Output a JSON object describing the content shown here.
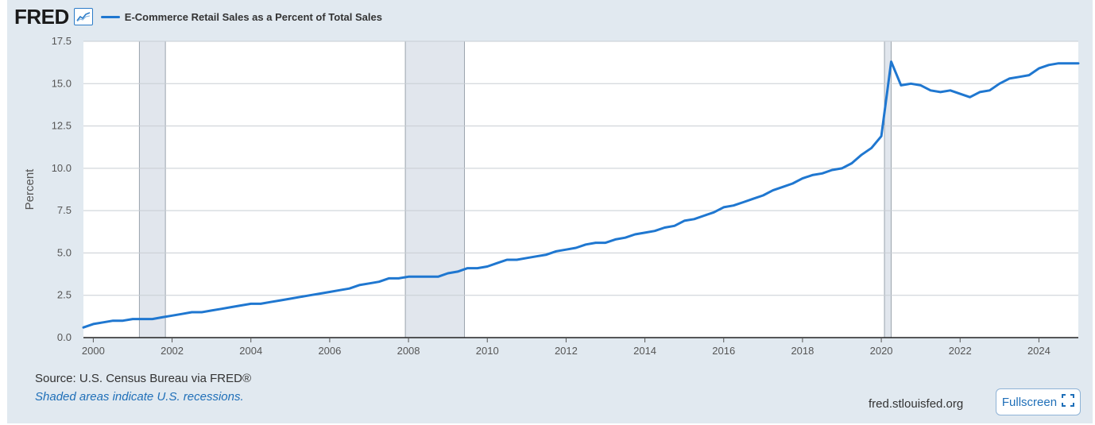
{
  "header": {
    "logo": "FRED",
    "legend_label": "E-Commerce Retail Sales as a Percent of Total Sales",
    "icon": "line-chart-icon"
  },
  "footer": {
    "source": "Source: U.S. Census Bureau via FRED®",
    "note": "Shaded areas indicate U.S. recessions.",
    "site": "fred.stlouisfed.org",
    "fullscreen_label": "Fullscreen",
    "fullscreen_icon": "expand-icon"
  },
  "colors": {
    "line": "#1f77d0",
    "recession": "#e1e6ed",
    "panel": "#e1e9f0"
  },
  "chart_data": {
    "type": "line",
    "ylabel": "Percent",
    "ylim": [
      0,
      17.5
    ],
    "yticks": [
      "0.0",
      "2.5",
      "5.0",
      "7.5",
      "10.0",
      "12.5",
      "15.0",
      "17.5"
    ],
    "xlim": [
      1999.75,
      2025.0
    ],
    "xticks": [
      "2000",
      "2002",
      "2004",
      "2006",
      "2008",
      "2010",
      "2012",
      "2014",
      "2016",
      "2018",
      "2020",
      "2022",
      "2024"
    ],
    "grid": true,
    "recessions": [
      [
        2001.17,
        2001.83
      ],
      [
        2007.92,
        2009.42
      ],
      [
        2020.08,
        2020.25
      ]
    ],
    "series": [
      {
        "name": "E-Commerce Retail Sales as a Percent of Total Sales",
        "x": [
          1999.75,
          2000.0,
          2000.25,
          2000.5,
          2000.75,
          2001.0,
          2001.25,
          2001.5,
          2001.75,
          2002.0,
          2002.25,
          2002.5,
          2002.75,
          2003.0,
          2003.25,
          2003.5,
          2003.75,
          2004.0,
          2004.25,
          2004.5,
          2004.75,
          2005.0,
          2005.25,
          2005.5,
          2005.75,
          2006.0,
          2006.25,
          2006.5,
          2006.75,
          2007.0,
          2007.25,
          2007.5,
          2007.75,
          2008.0,
          2008.25,
          2008.5,
          2008.75,
          2009.0,
          2009.25,
          2009.5,
          2009.75,
          2010.0,
          2010.25,
          2010.5,
          2010.75,
          2011.0,
          2011.25,
          2011.5,
          2011.75,
          2012.0,
          2012.25,
          2012.5,
          2012.75,
          2013.0,
          2013.25,
          2013.5,
          2013.75,
          2014.0,
          2014.25,
          2014.5,
          2014.75,
          2015.0,
          2015.25,
          2015.5,
          2015.75,
          2016.0,
          2016.25,
          2016.5,
          2016.75,
          2017.0,
          2017.25,
          2017.5,
          2017.75,
          2018.0,
          2018.25,
          2018.5,
          2018.75,
          2019.0,
          2019.25,
          2019.5,
          2019.75,
          2020.0,
          2020.25,
          2020.5,
          2020.75,
          2021.0,
          2021.25,
          2021.5,
          2021.75,
          2022.0,
          2022.25,
          2022.5,
          2022.75,
          2023.0,
          2023.25,
          2023.5,
          2023.75,
          2024.0,
          2024.25,
          2024.5,
          2024.75,
          2025.0
        ],
        "values": [
          0.6,
          0.8,
          0.9,
          1.0,
          1.0,
          1.1,
          1.1,
          1.1,
          1.2,
          1.3,
          1.4,
          1.5,
          1.5,
          1.6,
          1.7,
          1.8,
          1.9,
          2.0,
          2.0,
          2.1,
          2.2,
          2.3,
          2.4,
          2.5,
          2.6,
          2.7,
          2.8,
          2.9,
          3.1,
          3.2,
          3.3,
          3.5,
          3.5,
          3.6,
          3.6,
          3.6,
          3.6,
          3.8,
          3.9,
          4.1,
          4.1,
          4.2,
          4.4,
          4.6,
          4.6,
          4.7,
          4.8,
          4.9,
          5.1,
          5.2,
          5.3,
          5.5,
          5.6,
          5.6,
          5.8,
          5.9,
          6.1,
          6.2,
          6.3,
          6.5,
          6.6,
          6.9,
          7.0,
          7.2,
          7.4,
          7.7,
          7.8,
          8.0,
          8.2,
          8.4,
          8.7,
          8.9,
          9.1,
          9.4,
          9.6,
          9.7,
          9.9,
          10.0,
          10.3,
          10.8,
          11.2,
          11.9,
          16.3,
          14.9,
          15.0,
          14.9,
          14.6,
          14.5,
          14.6,
          14.4,
          14.2,
          14.5,
          14.6,
          15.0,
          15.3,
          15.4,
          15.5,
          15.9,
          16.1,
          16.2,
          16.2,
          16.2
        ]
      }
    ]
  }
}
